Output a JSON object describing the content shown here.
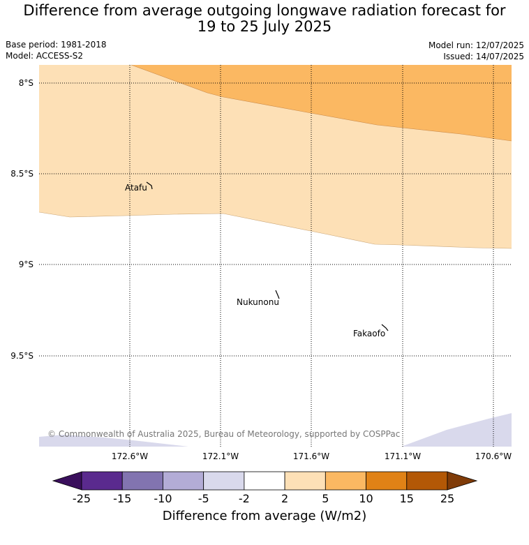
{
  "title_line1": "Difference from average outgoing longwave radiation forecast for",
  "title_line2": "19 to 25 July 2025",
  "base_period": "Base period: 1981-2018",
  "model": "Model: ACCESS-S2",
  "model_run": "Model run: 12/07/2025",
  "issued": "Issued: 14/07/2025",
  "copyright": "© Commonwealth of Australia 2025, Bureau of Meteorology, supported by COSPPac",
  "map": {
    "lat_ticks": [
      "8°S",
      "8.5°S",
      "9°S",
      "9.5°S"
    ],
    "lon_ticks": [
      "172.6°W",
      "172.1°W",
      "171.6°W",
      "171.1°W",
      "170.6°W"
    ],
    "places": [
      "Atafu",
      "Nukunonu",
      "Fakaofo"
    ]
  },
  "colorbar": {
    "label": "Difference from average (W/m2)",
    "ticks": [
      "-25",
      "-15",
      "-10",
      "-5",
      "-2",
      "2",
      "5",
      "10",
      "15",
      "25"
    ],
    "colors": [
      "#3a0f5c",
      "#5a2a8e",
      "#8274b0",
      "#b3acd6",
      "#d9d9ec",
      "#ffffff",
      "#fde0b6",
      "#fbb862",
      "#e08216",
      "#b35806",
      "#7f3b08"
    ]
  }
}
